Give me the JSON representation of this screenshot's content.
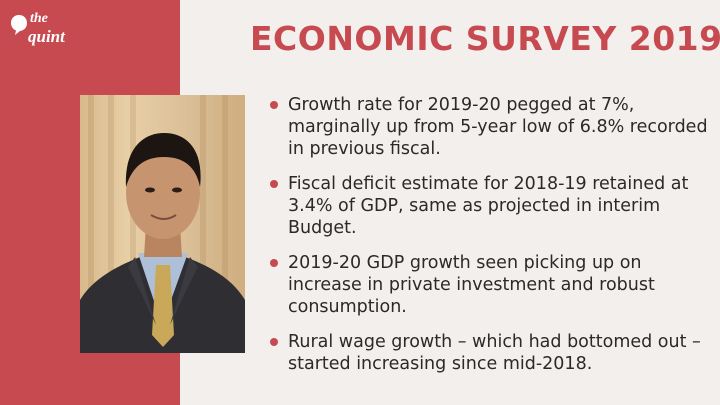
{
  "brand": {
    "logo_line1": "the",
    "logo_line2": "quint"
  },
  "title": "ECONOMIC SURVEY 2019",
  "photo": {
    "subject": "portrait-photo"
  },
  "bullets": [
    "Growth rate for 2019-20 pegged at 7%, marginally up from 5-year low of 6.8% recorded in previous fiscal.",
    "Fiscal deficit estimate for 2018-19 retained at 3.4% of GDP, same as projected in interim Budget.",
    "2019-20 GDP growth seen picking up on increase in private investment and robust consumption.",
    "Rural wage growth – which had bottomed out – started increasing since mid-2018."
  ],
  "colors": {
    "accent": "#c74a50",
    "background": "#f2efed",
    "text": "#2a2a2a"
  }
}
